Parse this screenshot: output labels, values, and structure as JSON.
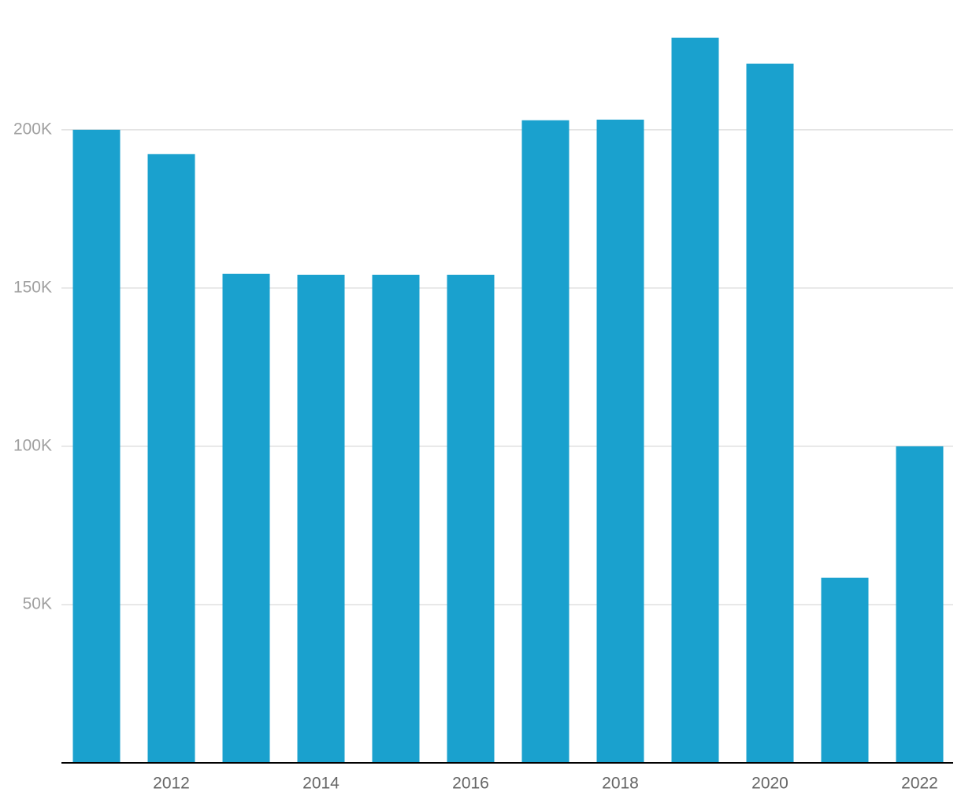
{
  "chart_data": {
    "type": "bar",
    "categories": [
      null,
      "2012",
      null,
      "2014",
      null,
      "2016",
      null,
      "2018",
      null,
      "2020",
      null,
      "2022"
    ],
    "values": [
      200000,
      192300,
      154500,
      154200,
      154200,
      154200,
      203000,
      203200,
      229100,
      220900,
      58500,
      100000
    ],
    "color": "#1aa1ce",
    "ylim": [
      0,
      240000
    ],
    "yticks": [
      {
        "value": 50000,
        "label": "50K"
      },
      {
        "value": 100000,
        "label": "100K"
      },
      {
        "value": 150000,
        "label": "150K"
      },
      {
        "value": 200000,
        "label": "200K"
      }
    ],
    "grid": true
  }
}
